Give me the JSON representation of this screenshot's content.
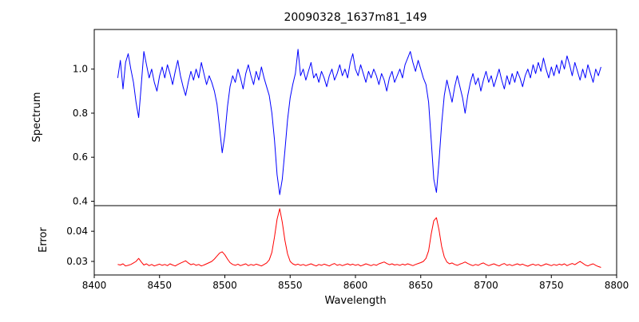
{
  "figure": {
    "title": "20090328_1637m81_149",
    "spectrum_label": "Spectrum",
    "error_label": "Error"
  },
  "x_axis": {
    "label": "Wavelength",
    "range": [
      8400,
      8800
    ],
    "ticks": [
      {
        "v": 8400,
        "label": "8400"
      },
      {
        "v": 8450,
        "label": "8450"
      },
      {
        "v": 8500,
        "label": "8500"
      },
      {
        "v": 8550,
        "label": "8550"
      },
      {
        "v": 8600,
        "label": "8600"
      },
      {
        "v": 8650,
        "label": "8650"
      },
      {
        "v": 8700,
        "label": "8700"
      },
      {
        "v": 8750,
        "label": "8750"
      },
      {
        "v": 8800,
        "label": "8800"
      }
    ]
  },
  "chart_data": [
    {
      "type": "line",
      "name": "Spectrum",
      "panel": "top",
      "color": "#0000ff",
      "ylim": [
        0.38,
        1.18
      ],
      "yticks": [
        {
          "v": 0.4,
          "label": "0.4"
        },
        {
          "v": 0.6,
          "label": "0.6"
        },
        {
          "v": 0.8,
          "label": "0.8"
        },
        {
          "v": 1.0,
          "label": "1.0"
        }
      ],
      "x_start": 8418,
      "x_step": 2,
      "values": [
        0.96,
        1.04,
        0.91,
        1.03,
        1.07,
        1.0,
        0.94,
        0.85,
        0.78,
        0.93,
        1.08,
        1.02,
        0.96,
        1.0,
        0.94,
        0.9,
        0.97,
        1.01,
        0.96,
        1.02,
        0.98,
        0.93,
        0.99,
        1.04,
        0.97,
        0.92,
        0.88,
        0.94,
        0.99,
        0.95,
        1.0,
        0.96,
        1.03,
        0.98,
        0.93,
        0.97,
        0.94,
        0.9,
        0.84,
        0.73,
        0.62,
        0.7,
        0.83,
        0.92,
        0.97,
        0.94,
        1.0,
        0.96,
        0.91,
        0.98,
        1.02,
        0.97,
        0.93,
        0.99,
        0.95,
        1.01,
        0.96,
        0.92,
        0.88,
        0.8,
        0.68,
        0.52,
        0.43,
        0.5,
        0.63,
        0.77,
        0.87,
        0.93,
        0.98,
        1.09,
        0.97,
        1.0,
        0.95,
        0.99,
        1.03,
        0.96,
        0.98,
        0.94,
        0.99,
        0.96,
        0.92,
        0.97,
        1.0,
        0.95,
        0.98,
        1.02,
        0.97,
        1.0,
        0.96,
        1.03,
        1.07,
        1.0,
        0.97,
        1.02,
        0.98,
        0.94,
        0.99,
        0.96,
        1.0,
        0.97,
        0.93,
        0.98,
        0.95,
        0.9,
        0.96,
        0.99,
        0.94,
        0.97,
        1.0,
        0.96,
        1.02,
        1.05,
        1.08,
        1.03,
        0.99,
        1.04,
        1.0,
        0.96,
        0.93,
        0.85,
        0.68,
        0.5,
        0.44,
        0.58,
        0.75,
        0.88,
        0.95,
        0.9,
        0.85,
        0.92,
        0.97,
        0.92,
        0.87,
        0.8,
        0.88,
        0.94,
        0.98,
        0.93,
        0.96,
        0.9,
        0.95,
        0.99,
        0.94,
        0.97,
        0.92,
        0.96,
        1.0,
        0.95,
        0.91,
        0.97,
        0.93,
        0.98,
        0.94,
        0.99,
        0.96,
        0.92,
        0.97,
        1.0,
        0.96,
        1.02,
        0.98,
        1.03,
        0.99,
        1.05,
        1.0,
        0.96,
        1.01,
        0.97,
        1.02,
        0.98,
        1.04,
        1.0,
        1.06,
        1.02,
        0.97,
        1.03,
        0.99,
        0.95,
        1.0,
        0.96,
        1.02,
        0.98,
        0.94,
        1.0,
        0.97,
        1.01
      ]
    },
    {
      "type": "line",
      "name": "Error",
      "panel": "bottom",
      "color": "#ff0000",
      "ylim": [
        0.0255,
        0.0485
      ],
      "yticks": [
        {
          "v": 0.03,
          "label": "0.03"
        },
        {
          "v": 0.04,
          "label": "0.04"
        }
      ],
      "x_start": 8418,
      "x_step": 2,
      "values": [
        0.029,
        0.0288,
        0.0292,
        0.0285,
        0.0287,
        0.029,
        0.0295,
        0.03,
        0.031,
        0.0298,
        0.0288,
        0.0292,
        0.0286,
        0.029,
        0.0285,
        0.0288,
        0.0291,
        0.0287,
        0.029,
        0.0286,
        0.0292,
        0.0288,
        0.0285,
        0.029,
        0.0294,
        0.0298,
        0.0302,
        0.0295,
        0.0289,
        0.0292,
        0.0287,
        0.029,
        0.0285,
        0.0288,
        0.0292,
        0.0296,
        0.03,
        0.0308,
        0.0318,
        0.0328,
        0.0332,
        0.0322,
        0.0308,
        0.0296,
        0.029,
        0.0287,
        0.0291,
        0.0286,
        0.0289,
        0.0292,
        0.0286,
        0.029,
        0.0287,
        0.0291,
        0.0288,
        0.0285,
        0.029,
        0.0295,
        0.0305,
        0.033,
        0.038,
        0.044,
        0.0475,
        0.043,
        0.037,
        0.0325,
        0.03,
        0.0292,
        0.0288,
        0.0291,
        0.0287,
        0.029,
        0.0286,
        0.0289,
        0.0292,
        0.0288,
        0.0285,
        0.029,
        0.0287,
        0.0291,
        0.0288,
        0.0285,
        0.029,
        0.0293,
        0.0287,
        0.029,
        0.0286,
        0.0289,
        0.0292,
        0.0288,
        0.0291,
        0.0287,
        0.029,
        0.0285,
        0.0288,
        0.0292,
        0.0289,
        0.0286,
        0.029,
        0.0287,
        0.0292,
        0.0295,
        0.0298,
        0.0293,
        0.0289,
        0.0292,
        0.0288,
        0.029,
        0.0287,
        0.0291,
        0.0288,
        0.0292,
        0.0289,
        0.0286,
        0.029,
        0.0293,
        0.0296,
        0.03,
        0.031,
        0.0335,
        0.039,
        0.0435,
        0.0445,
        0.0405,
        0.035,
        0.0315,
        0.0298,
        0.0292,
        0.0295,
        0.029,
        0.0287,
        0.0291,
        0.0294,
        0.0298,
        0.0293,
        0.0289,
        0.0286,
        0.029,
        0.0287,
        0.0292,
        0.0295,
        0.029,
        0.0286,
        0.0289,
        0.0292,
        0.0288,
        0.0285,
        0.029,
        0.0293,
        0.0287,
        0.029,
        0.0286,
        0.0289,
        0.0292,
        0.0288,
        0.0291,
        0.0287,
        0.0284,
        0.0288,
        0.0291,
        0.0287,
        0.029,
        0.0285,
        0.0288,
        0.0292,
        0.0289,
        0.0286,
        0.029,
        0.0287,
        0.0291,
        0.0288,
        0.0292,
        0.0286,
        0.029,
        0.0293,
        0.0289,
        0.0295,
        0.03,
        0.0294,
        0.0288,
        0.0285,
        0.0289,
        0.0292,
        0.0287,
        0.0283,
        0.028
      ]
    }
  ]
}
